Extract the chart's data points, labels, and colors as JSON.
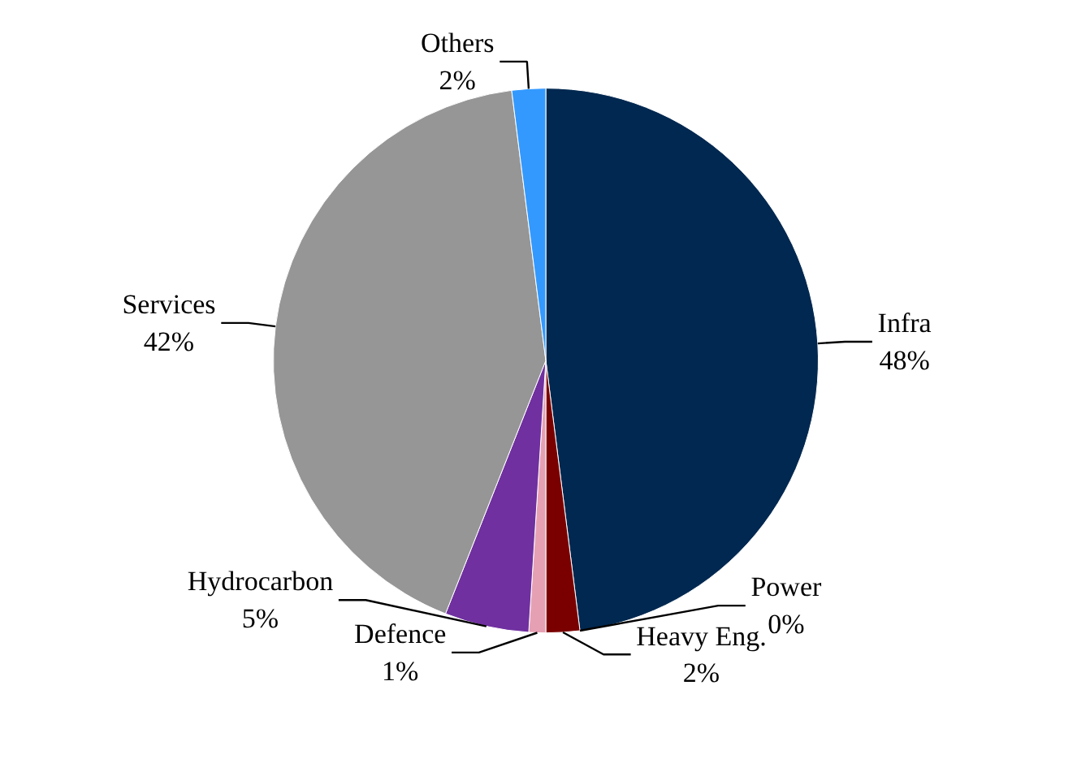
{
  "chart_data": {
    "type": "pie",
    "categories": [
      "Infra",
      "Power",
      "Heavy Eng.",
      "Defence",
      "Hydrocarbon",
      "Services",
      "Others"
    ],
    "values": [
      48,
      0,
      2,
      1,
      5,
      42,
      2
    ],
    "value_labels": [
      "48%",
      "0%",
      "2%",
      "1%",
      "5%",
      "42%",
      "2%"
    ],
    "colors": [
      "#002850",
      "#c00000",
      "#7a0000",
      "#e6a0b4",
      "#7030a0",
      "#969696",
      "#3399ff"
    ]
  }
}
